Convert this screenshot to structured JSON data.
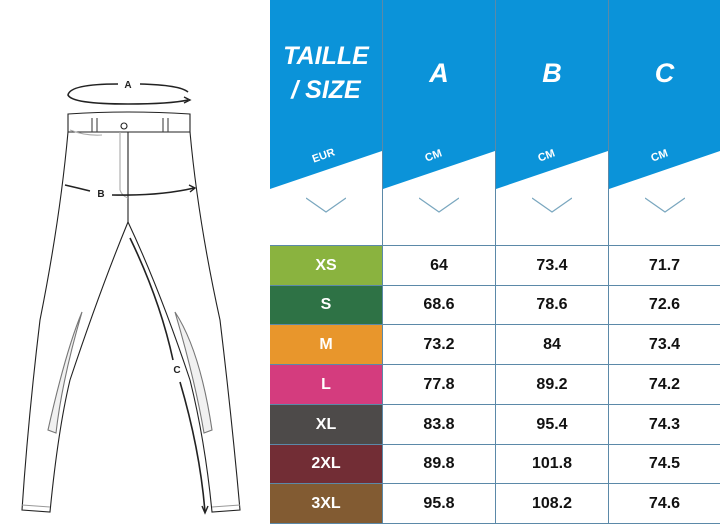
{
  "diagram": {
    "labels": {
      "a": "A",
      "b": "B",
      "c": "C"
    }
  },
  "header": {
    "columns": [
      {
        "title_line1": "TAILLE",
        "title_line2": "/ SIZE",
        "unit": "EUR"
      },
      {
        "title_line1": "A",
        "unit": "CM"
      },
      {
        "title_line1": "B",
        "unit": "CM"
      },
      {
        "title_line1": "C",
        "unit": "CM"
      }
    ],
    "header_color": "#0b93d9"
  },
  "rows": [
    {
      "size": "XS",
      "color": "#8ab33f",
      "a": "64",
      "b": "73.4",
      "c": "71.7"
    },
    {
      "size": "S",
      "color": "#2e7245",
      "a": "68.6",
      "b": "78.6",
      "c": "72.6"
    },
    {
      "size": "M",
      "color": "#e8962c",
      "a": "73.2",
      "b": "84",
      "c": "73.4"
    },
    {
      "size": "L",
      "color": "#d43c7e",
      "a": "77.8",
      "b": "89.2",
      "c": "74.2"
    },
    {
      "size": "XL",
      "color": "#4d4a49",
      "a": "83.8",
      "b": "95.4",
      "c": "74.3"
    },
    {
      "size": "2XL",
      "color": "#722d35",
      "a": "89.8",
      "b": "101.8",
      "c": "74.5"
    },
    {
      "size": "3XL",
      "color": "#825b32",
      "a": "95.8",
      "b": "108.2",
      "c": "74.6"
    }
  ]
}
